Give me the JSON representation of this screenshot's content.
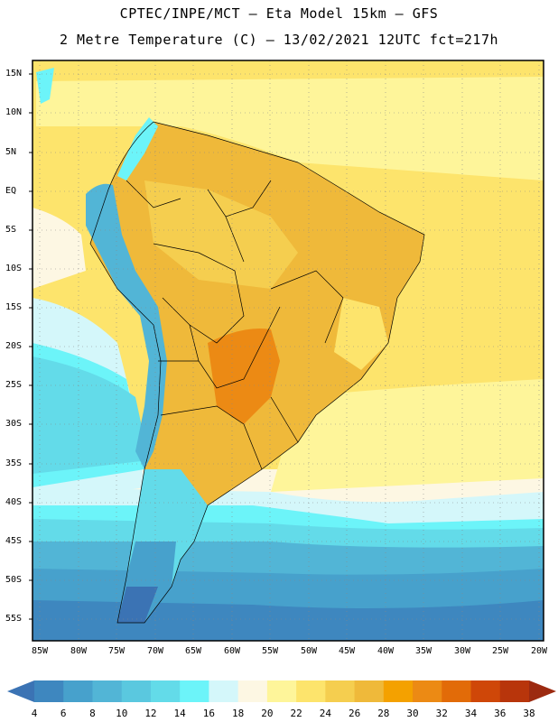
{
  "header": {
    "line1": "CPTEC/INPE/MCT –  Eta Model 15km – GFS",
    "line2": "2 Metre Temperature (C) – 13/02/2021 12UTC fct=217h"
  },
  "axes": {
    "lat_labels": [
      "15N",
      "10N",
      "5N",
      "EQ",
      "5S",
      "10S",
      "15S",
      "20S",
      "25S",
      "30S",
      "35S",
      "40S",
      "45S",
      "50S",
      "55S"
    ],
    "lon_labels": [
      "85W",
      "80W",
      "75W",
      "70W",
      "65W",
      "60W",
      "55W",
      "50W",
      "45W",
      "40W",
      "35W",
      "30W",
      "25W",
      "20W"
    ]
  },
  "colorbar": {
    "values": [
      "4",
      "6",
      "8",
      "10",
      "12",
      "14",
      "16",
      "18",
      "20",
      "22",
      "24",
      "26",
      "28",
      "30",
      "32",
      "34",
      "36",
      "38"
    ],
    "colors": [
      "#3b73b4",
      "#3e87bf",
      "#47a1cc",
      "#52b5d6",
      "#5ac8df",
      "#63dbe9",
      "#6cf4f9",
      "#d4f7fa",
      "#fdf7e3",
      "#fef59a",
      "#fde46c",
      "#f5ce4f",
      "#efb93a",
      "#f4a100",
      "#ec8a14",
      "#e26b08",
      "#cf4708",
      "#b8350b",
      "#9c2a10"
    ]
  },
  "map": {
    "ocean_color": "#fdf7e3",
    "land_warm": "#efb93a",
    "land_hot": "#ec8a14",
    "cold_band": "#52b5d6",
    "frame_color": "#000000"
  }
}
